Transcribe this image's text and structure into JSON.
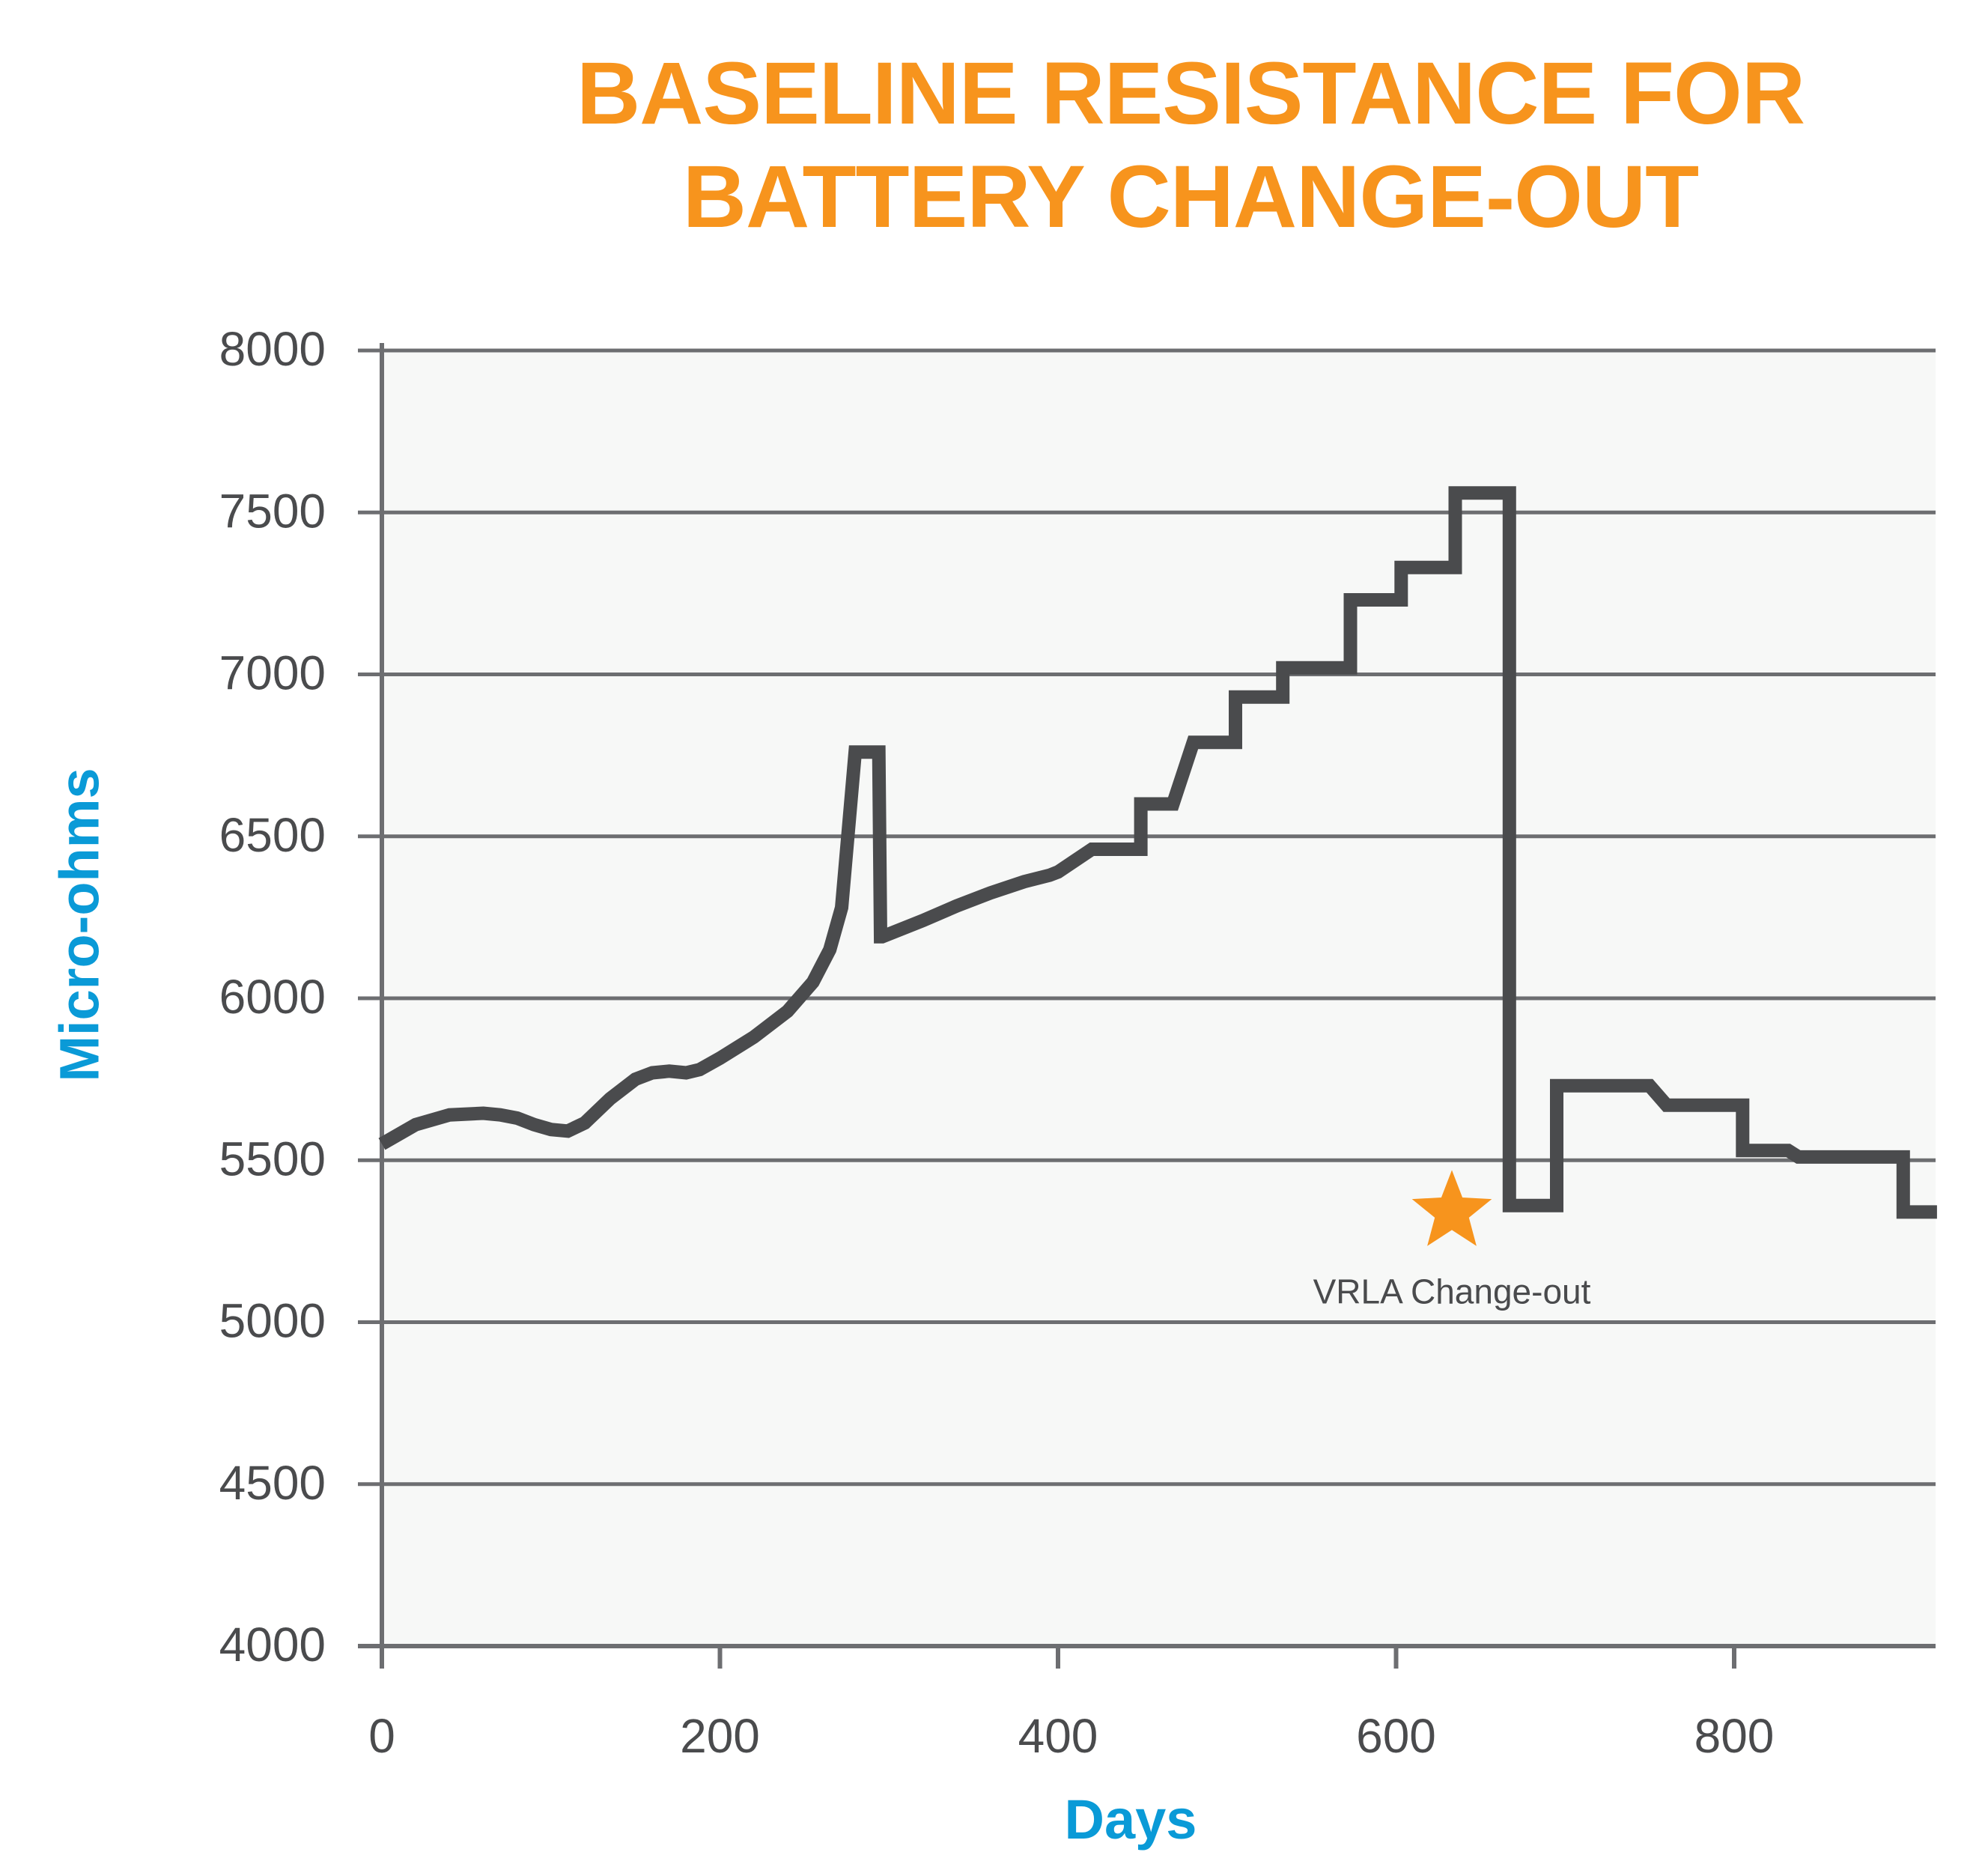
{
  "chart_data": {
    "type": "line",
    "title_lines": [
      "BASELINE RESISTANCE FOR",
      "BATTERY CHANGE-OUT"
    ],
    "xlabel": "Days",
    "ylabel": "Micro-ohms",
    "xlim": [
      0,
      920
    ],
    "ylim": [
      4000,
      8000
    ],
    "xticks": [
      0,
      200,
      400,
      600,
      800
    ],
    "xtick_labels": [
      "0",
      "200",
      "400",
      "600",
      "800"
    ],
    "yticks": [
      4000,
      4500,
      5000,
      5500,
      6000,
      6500,
      7000,
      7500,
      8000
    ],
    "ytick_labels": [
      "4000",
      "4500",
      "5000",
      "5500",
      "6000",
      "6500",
      "7000",
      "7500",
      "8000"
    ],
    "grid": "horizontal",
    "legend": "none",
    "series": [
      {
        "x": [
          0,
          20,
          40,
          60,
          70,
          80,
          90,
          100,
          110,
          120,
          135,
          150,
          160,
          170,
          180,
          188,
          200,
          220,
          240,
          255,
          265,
          272,
          280,
          294,
          295,
          296,
          320,
          340,
          360,
          380,
          395,
          400,
          420,
          449,
          449,
          453,
          468,
          480,
          480,
          505,
          505,
          507,
          533,
          533,
          543,
          573,
          573,
          603,
          603,
          635,
          635,
          667,
          667,
          695,
          695,
          750,
          760,
          805,
          805,
          832,
          838,
          900,
          900,
          920
        ],
        "y": [
          5550,
          5610,
          5640,
          5645,
          5640,
          5630,
          5610,
          5595,
          5590,
          5615,
          5690,
          5750,
          5770,
          5775,
          5770,
          5780,
          5815,
          5880,
          5960,
          6050,
          6150,
          6280,
          6760,
          6760,
          6190,
          6190,
          6240,
          6285,
          6325,
          6360,
          6380,
          6390,
          6460,
          6460,
          6600,
          6600,
          6600,
          6790,
          6790,
          6790,
          6930,
          6930,
          6930,
          7020,
          7020,
          7020,
          7230,
          7230,
          7330,
          7330,
          7560,
          7560,
          5360,
          5360,
          5730,
          5730,
          5670,
          5670,
          5530,
          5530,
          5510,
          5510,
          5340,
          5340
        ]
      }
    ],
    "annotations": [
      {
        "text": "VRLA Change-out",
        "x": 633,
        "y": 5340,
        "marker": "star"
      }
    ],
    "colors": {
      "title": "#f7941d",
      "axis_title": "#0a9ad7",
      "line": "#4a4b4d",
      "tick_label": "#4a4b4d",
      "grid": "#6d6e71",
      "plot_background": "#f7f8f7",
      "star": "#f7941d"
    }
  }
}
